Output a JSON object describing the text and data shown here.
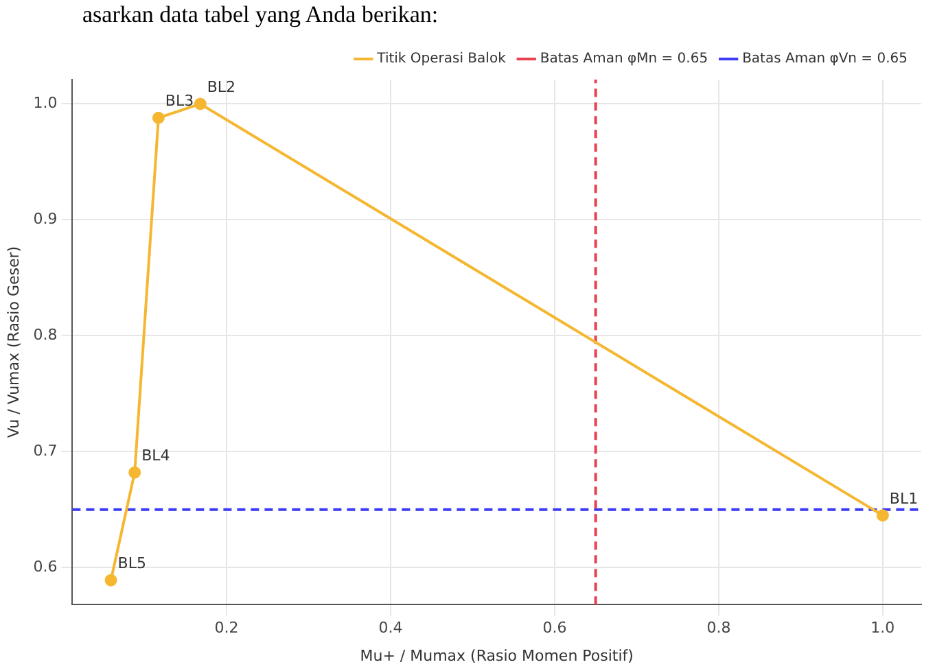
{
  "chart_data": {
    "type": "line",
    "annotations": [
      "asarkan data tabel yang Anda berikan:",
      {
        "text": "BL1",
        "x": 1.0,
        "y": 0.645
      },
      {
        "text": "BL2",
        "x": 0.168,
        "y": 1.0
      },
      {
        "text": "BL3",
        "x": 0.117,
        "y": 0.988
      },
      {
        "text": "BL4",
        "x": 0.088,
        "y": 0.682
      },
      {
        "text": "BL5",
        "x": 0.059,
        "y": 0.589
      }
    ],
    "xlabel": "Mu+ / Mumax (Rasio Momen Positif)",
    "ylabel": "Vu / Vumax (Rasio Geser)",
    "x": [
      1.0,
      0.168,
      0.117,
      0.088,
      0.059
    ],
    "series": [
      {
        "name": "Titik Operasi Balok",
        "color": "#f5b731",
        "values": [
          0.645,
          1.0,
          0.988,
          0.682,
          0.589
        ]
      }
    ],
    "ref_lines": [
      {
        "axis": "x",
        "value": 0.65,
        "label": "Batas Aman φMn = 0.65",
        "color": "#e8414f",
        "line_style": "dashed"
      },
      {
        "axis": "y",
        "value": 0.65,
        "label": "Batas Aman φVn = 0.65",
        "color": "#3b3bf5",
        "line_style": "dashed"
      }
    ],
    "xlim": [
      0.012,
      1.047
    ],
    "xticks": [
      0.2,
      0.4,
      0.6,
      0.8,
      {
        "value": 1,
        "label": "1.0"
      }
    ],
    "ylim": [
      0.568,
      1.021
    ],
    "yticks": [
      0.6,
      0.7,
      0.8,
      0.9,
      {
        "value": 1,
        "label": "1.0"
      }
    ],
    "grid": true,
    "legend": "top right",
    "marker": "circle",
    "line_style": "solid"
  }
}
